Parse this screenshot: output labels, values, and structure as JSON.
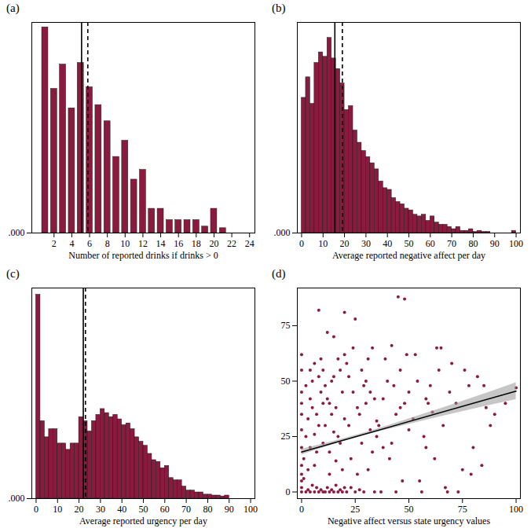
{
  "chart_data": [
    {
      "panel": "(a)",
      "type": "bar",
      "x_label": "Number of reported drinks if drinks > 0",
      "color": "#8b1a3f",
      "x": [
        1,
        2,
        3,
        4,
        5,
        6,
        7,
        8,
        9,
        10,
        11,
        12,
        13,
        14,
        15,
        16,
        17,
        18,
        19,
        20,
        21
      ],
      "values": [
        0.127,
        0.089,
        0.104,
        0.077,
        0.105,
        0.09,
        0.079,
        0.069,
        0.047,
        0.057,
        0.033,
        0.039,
        0.015,
        0.015,
        0.008,
        0.008,
        0.008,
        0.008,
        0.004,
        0.015,
        0.003
      ],
      "xlim": [
        -0.5,
        24.6
      ],
      "xticks": [
        2,
        4,
        6,
        8,
        10,
        12,
        14,
        16,
        18,
        20,
        22,
        24
      ],
      "ylim": [
        0,
        0.13
      ],
      "yticks": [
        {
          "value": 0,
          "label": ".000"
        }
      ],
      "vlines": [
        {
          "x": 5.1,
          "line_style": "solid"
        },
        {
          "x": 5.8,
          "line_style": "dashed"
        }
      ]
    },
    {
      "panel": "(b)",
      "type": "histogram",
      "x_label": "Average reported negative affect per day",
      "color": "#8b1a3f",
      "bins": [
        0,
        2,
        4,
        6,
        8,
        10,
        12,
        14,
        16,
        18,
        20,
        22,
        24,
        26,
        28,
        30,
        32,
        34,
        36,
        38,
        40,
        42,
        44,
        46,
        48,
        50,
        52,
        54,
        56,
        58,
        60,
        62,
        64,
        66,
        68,
        70,
        72,
        74,
        76,
        78,
        80,
        82,
        84,
        86,
        88,
        90,
        92,
        94,
        96,
        98,
        100
      ],
      "counts": [
        0.0244,
        0.0281,
        0.0233,
        0.0307,
        0.0326,
        0.0318,
        0.0352,
        0.0315,
        0.0296,
        0.027,
        0.0222,
        0.0229,
        0.0185,
        0.0163,
        0.0148,
        0.0137,
        0.0126,
        0.0115,
        0.0093,
        0.0081,
        0.0078,
        0.0063,
        0.0056,
        0.0052,
        0.0044,
        0.0041,
        0.0033,
        0.003,
        0.0033,
        0.0022,
        0.003,
        0.0019,
        0.0015,
        0.0015,
        0.0011,
        0.0007,
        0.0011,
        0.0004,
        0.0004,
        0.0007,
        0.0002,
        0.0004,
        0.0002,
        0.0002,
        0,
        0,
        0,
        0,
        0,
        0.0004
      ],
      "xlim": [
        -2,
        102
      ],
      "xticks": [
        0,
        10,
        20,
        30,
        40,
        50,
        60,
        70,
        80,
        90,
        100
      ],
      "ylim": [
        0,
        0.038
      ],
      "yticks": [
        {
          "value": 0,
          "label": ".000"
        }
      ],
      "vlines": [
        {
          "x": 15.5,
          "line_style": "solid"
        },
        {
          "x": 19,
          "line_style": "dashed"
        }
      ]
    },
    {
      "panel": "(c)",
      "type": "histogram",
      "x_label": "Average reported urgency per day",
      "color": "#8b1a3f",
      "bins": [
        0,
        2,
        4,
        6,
        8,
        10,
        12,
        14,
        16,
        18,
        20,
        22,
        24,
        26,
        28,
        30,
        32,
        34,
        36,
        38,
        40,
        42,
        44,
        46,
        48,
        50,
        52,
        54,
        56,
        58,
        60,
        62,
        64,
        66,
        68,
        70,
        72,
        74,
        76,
        78,
        80,
        82,
        84,
        86,
        88,
        90,
        92,
        94,
        96,
        98,
        100
      ],
      "counts": [
        0.0455,
        0.0173,
        0.0137,
        0.0155,
        0.0155,
        0.0123,
        0.0123,
        0.0109,
        0.0123,
        0.0123,
        0.0182,
        0.0173,
        0.015,
        0.0173,
        0.0187,
        0.02,
        0.0191,
        0.0182,
        0.0187,
        0.0177,
        0.0164,
        0.0168,
        0.0155,
        0.0137,
        0.0127,
        0.0118,
        0.01,
        0.0086,
        0.0082,
        0.0068,
        0.0073,
        0.0046,
        0.0041,
        0.0041,
        0.0027,
        0.0018,
        0.0018,
        0.0014,
        0.0014,
        0.0009,
        0.0009,
        0.0007,
        0.0007,
        0.0005,
        0.0007,
        0,
        0,
        0,
        0,
        0
      ],
      "xlim": [
        -2,
        102
      ],
      "xticks": [
        0,
        10,
        20,
        30,
        40,
        50,
        60,
        70,
        80,
        90,
        100
      ],
      "ylim": [
        0,
        0.047
      ],
      "yticks": [
        {
          "value": 0,
          "label": ".000"
        }
      ],
      "vlines": [
        {
          "x": 22,
          "line_style": "solid"
        },
        {
          "x": 23,
          "line_style": "dashed"
        }
      ]
    },
    {
      "panel": "(d)",
      "type": "scatter",
      "x_label": "Negative affect versus state urgency values",
      "color": "#8b1a3f",
      "points": [
        [
          0,
          0
        ],
        [
          0,
          2
        ],
        [
          0,
          5
        ],
        [
          0,
          12
        ],
        [
          0,
          20
        ],
        [
          0,
          28
        ],
        [
          0,
          35
        ],
        [
          0,
          45
        ],
        [
          0,
          55
        ],
        [
          0,
          62
        ],
        [
          0,
          8
        ],
        [
          0,
          40
        ],
        [
          2,
          0
        ],
        [
          3,
          1
        ],
        [
          4,
          0
        ],
        [
          5,
          3
        ],
        [
          6,
          0
        ],
        [
          7,
          2
        ],
        [
          8,
          0
        ],
        [
          9,
          1
        ],
        [
          10,
          0
        ],
        [
          1,
          15
        ],
        [
          2,
          25
        ],
        [
          3,
          33
        ],
        [
          4,
          42
        ],
        [
          5,
          50
        ],
        [
          6,
          58
        ],
        [
          7,
          18
        ],
        [
          8,
          30
        ],
        [
          9,
          45
        ],
        [
          10,
          22
        ],
        [
          3,
          10
        ],
        [
          5,
          38
        ],
        [
          6,
          26
        ],
        [
          8,
          52
        ],
        [
          9,
          60
        ],
        [
          2,
          48
        ],
        [
          4,
          20
        ],
        [
          7,
          35
        ],
        [
          10,
          40
        ],
        [
          8,
          82
        ],
        [
          1,
          6
        ],
        [
          4,
          55
        ],
        [
          6,
          12
        ],
        [
          10,
          55
        ],
        [
          11,
          0
        ],
        [
          12,
          2
        ],
        [
          13,
          0
        ],
        [
          14,
          1
        ],
        [
          15,
          0
        ],
        [
          16,
          3
        ],
        [
          17,
          0
        ],
        [
          18,
          1
        ],
        [
          19,
          0
        ],
        [
          20,
          2
        ],
        [
          11,
          30
        ],
        [
          12,
          42
        ],
        [
          13,
          18
        ],
        [
          14,
          50
        ],
        [
          15,
          27
        ],
        [
          16,
          38
        ],
        [
          17,
          60
        ],
        [
          18,
          22
        ],
        [
          19,
          45
        ],
        [
          20,
          33
        ],
        [
          12,
          72
        ],
        [
          15,
          70
        ],
        [
          20,
          81
        ],
        [
          13,
          8
        ],
        [
          16,
          14
        ],
        [
          18,
          55
        ],
        [
          11,
          48
        ],
        [
          14,
          35
        ],
        [
          17,
          25
        ],
        [
          19,
          10
        ],
        [
          20,
          62
        ],
        [
          13,
          40
        ],
        [
          15,
          52
        ],
        [
          21,
          0
        ],
        [
          23,
          2
        ],
        [
          25,
          0
        ],
        [
          27,
          1
        ],
        [
          29,
          0
        ],
        [
          22,
          30
        ],
        [
          24,
          45
        ],
        [
          26,
          38
        ],
        [
          28,
          22
        ],
        [
          30,
          50
        ],
        [
          32,
          28
        ],
        [
          34,
          42
        ],
        [
          21,
          58
        ],
        [
          23,
          15
        ],
        [
          25,
          78
        ],
        [
          27,
          35
        ],
        [
          29,
          48
        ],
        [
          31,
          60
        ],
        [
          33,
          18
        ],
        [
          35,
          32
        ],
        [
          22,
          52
        ],
        [
          26,
          8
        ],
        [
          30,
          40
        ],
        [
          34,
          0
        ],
        [
          24,
          65
        ],
        [
          28,
          55
        ],
        [
          32,
          45
        ],
        [
          35,
          25
        ],
        [
          31,
          10
        ],
        [
          33,
          65
        ],
        [
          36,
          30
        ],
        [
          38,
          42
        ],
        [
          40,
          50
        ],
        [
          42,
          22
        ],
        [
          44,
          35
        ],
        [
          46,
          55
        ],
        [
          48,
          40
        ],
        [
          50,
          28
        ],
        [
          37,
          0
        ],
        [
          39,
          60
        ],
        [
          41,
          15
        ],
        [
          43,
          48
        ],
        [
          45,
          88
        ],
        [
          48,
          87
        ],
        [
          47,
          5
        ],
        [
          49,
          62
        ],
        [
          38,
          20
        ],
        [
          42,
          66
        ],
        [
          44,
          0
        ],
        [
          46,
          38
        ],
        [
          50,
          45
        ],
        [
          52,
          33
        ],
        [
          54,
          50
        ],
        [
          56,
          0
        ],
        [
          58,
          42
        ],
        [
          60,
          48
        ],
        [
          62,
          15
        ],
        [
          64,
          55
        ],
        [
          66,
          30
        ],
        [
          68,
          0
        ],
        [
          70,
          58
        ],
        [
          53,
          62
        ],
        [
          55,
          5
        ],
        [
          57,
          25
        ],
        [
          59,
          40
        ],
        [
          61,
          36
        ],
        [
          63,
          65
        ],
        [
          65,
          65
        ],
        [
          67,
          2
        ],
        [
          69,
          45
        ],
        [
          58,
          20
        ],
        [
          72,
          40
        ],
        [
          75,
          10
        ],
        [
          78,
          48
        ],
        [
          79,
          8
        ],
        [
          82,
          52
        ],
        [
          85,
          48
        ],
        [
          88,
          30
        ],
        [
          90,
          35
        ],
        [
          73,
          0
        ],
        [
          76,
          55
        ],
        [
          80,
          20
        ],
        [
          95,
          40
        ],
        [
          100,
          47
        ],
        [
          84,
          12
        ],
        [
          86,
          38
        ]
      ],
      "fit": {
        "x": [
          0,
          100
        ],
        "y": [
          18,
          45.5
        ]
      },
      "band": {
        "x": [
          0,
          25,
          50,
          75,
          100
        ],
        "lower": [
          16.8,
          24.3,
          30.5,
          36.3,
          41.7
        ],
        "upper": [
          19.2,
          25.5,
          33.0,
          40.9,
          49.3
        ]
      },
      "xlim": [
        -2,
        102
      ],
      "xticks": [
        0,
        25,
        50,
        75,
        100
      ],
      "ylim": [
        -3,
        92
      ],
      "yticks": [
        0,
        25,
        50,
        75
      ]
    }
  ]
}
